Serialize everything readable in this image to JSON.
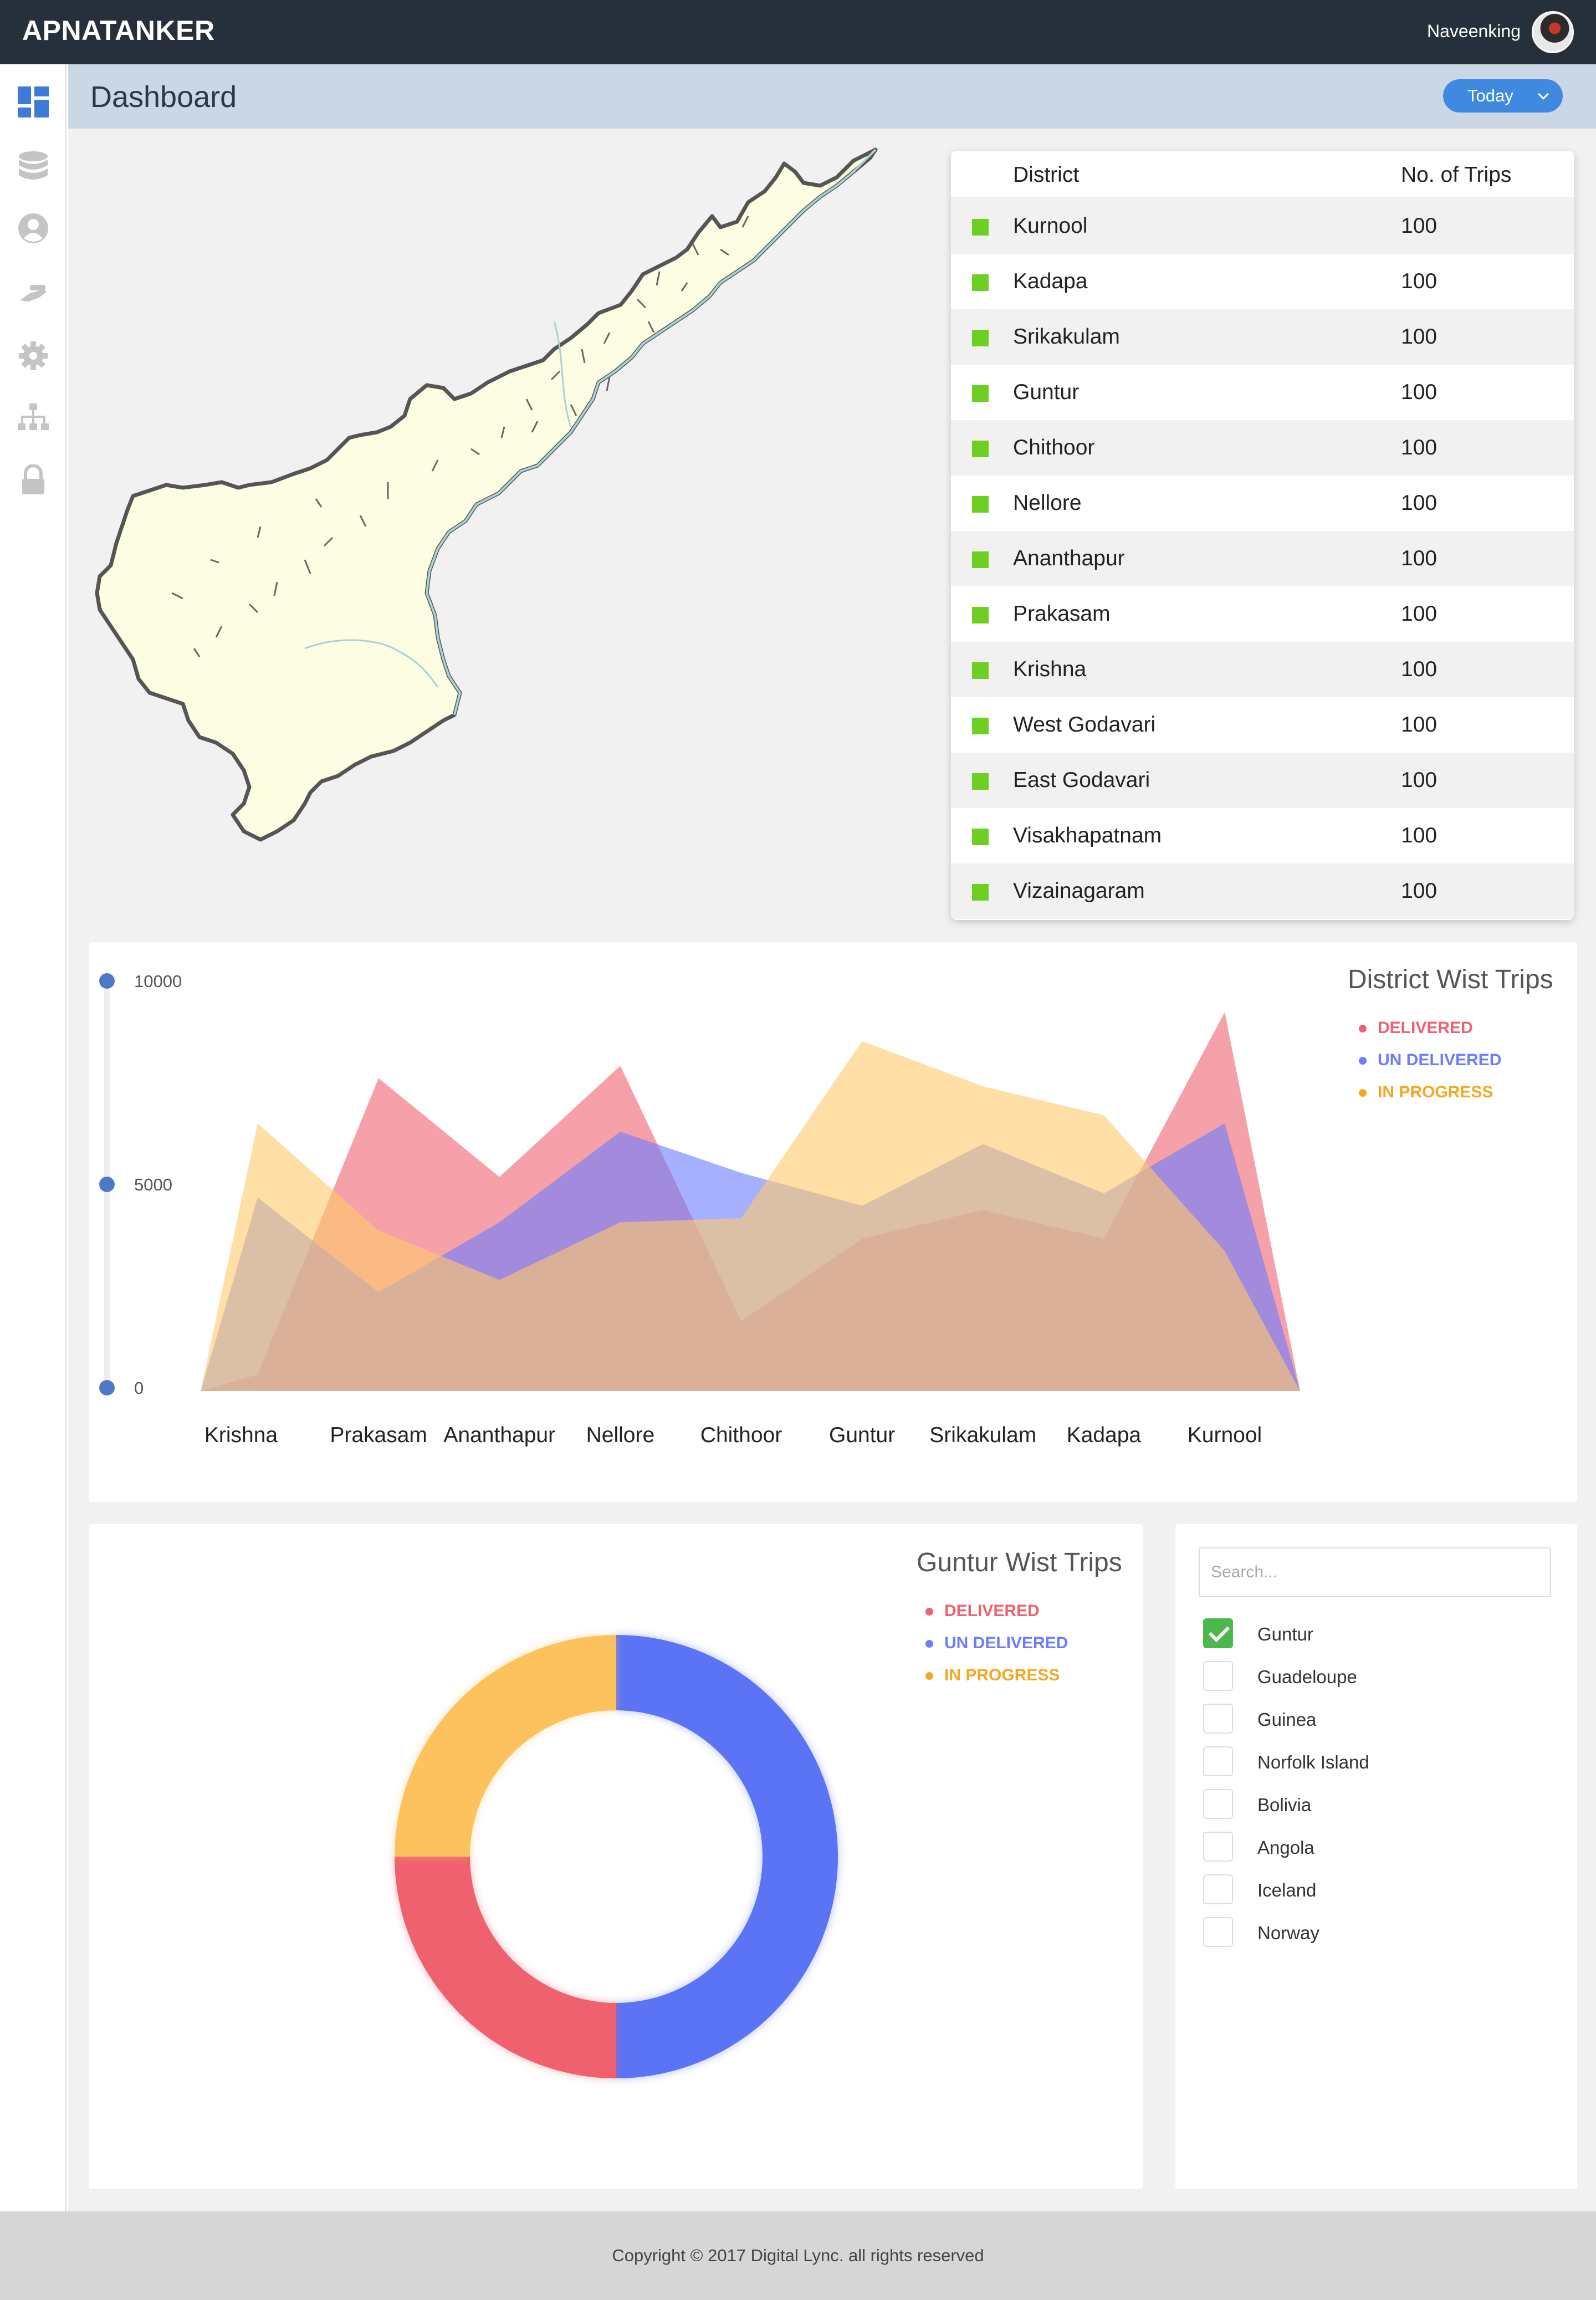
{
  "app": {
    "brand": "APNATANKER",
    "user_name": "Naveenking"
  },
  "header": {
    "title": "Dashboard",
    "period_label": "Today"
  },
  "sidebar": {
    "items": [
      {
        "icon": "dashboard-icon",
        "active": true
      },
      {
        "icon": "database-icon",
        "active": false
      },
      {
        "icon": "user-icon",
        "active": false
      },
      {
        "icon": "tanker-icon",
        "active": false
      },
      {
        "icon": "gear-icon",
        "active": false
      },
      {
        "icon": "hierarchy-icon",
        "active": false
      },
      {
        "icon": "lock-icon",
        "active": false
      }
    ]
  },
  "district_table": {
    "col_district": "District",
    "col_trips": "No. of Trips",
    "rows": [
      {
        "name": "Kurnool",
        "trips": "100"
      },
      {
        "name": "Kadapa",
        "trips": "100"
      },
      {
        "name": "Srikakulam",
        "trips": "100"
      },
      {
        "name": "Guntur",
        "trips": "100"
      },
      {
        "name": "Chithoor",
        "trips": "100"
      },
      {
        "name": "Nellore",
        "trips": "100"
      },
      {
        "name": "Ananthapur",
        "trips": "100"
      },
      {
        "name": "Prakasam",
        "trips": "100"
      },
      {
        "name": "Krishna",
        "trips": "100"
      },
      {
        "name": "West Godavari",
        "trips": "100"
      },
      {
        "name": "East Godavari",
        "trips": "100"
      },
      {
        "name": "Visakhapatnam",
        "trips": "100"
      },
      {
        "name": "Vizainagaram",
        "trips": "100"
      }
    ],
    "marker_color": "#6ecf22"
  },
  "chart_data": [
    {
      "type": "area",
      "title": "District Wist Trips",
      "categories": [
        "Krishna",
        "Prakasam",
        "Ananthapur",
        "Nellore",
        "Chithoor",
        "Guntur",
        "Srikakulam",
        "Kadapa",
        "Kurnool"
      ],
      "y_ticks": [
        "10000",
        "5000",
        "0"
      ],
      "ylim": [
        0,
        10000
      ],
      "series": [
        {
          "name": "DELIVERED",
          "color": "#f0616f",
          "values": [
            400,
            7600,
            5200,
            7900,
            1700,
            3700,
            4400,
            3700,
            9200
          ]
        },
        {
          "name": "UN DELIVERED",
          "color": "#6b7cff",
          "values": [
            4700,
            2400,
            4100,
            6300,
            5300,
            4500,
            6000,
            4800,
            6500
          ]
        },
        {
          "name": "IN PROGRESS",
          "color": "#ffc96b",
          "values": [
            6500,
            3900,
            2700,
            4100,
            4200,
            8500,
            7400,
            6700,
            3400
          ]
        }
      ],
      "legend_position": "top-right"
    },
    {
      "type": "pie",
      "title": "Guntur Wist Trips",
      "series": [
        {
          "name": "DELIVERED",
          "color": "#f0616f",
          "value": 25
        },
        {
          "name": "UN DELIVERED",
          "color": "#5b73f5",
          "value": 50
        },
        {
          "name": "IN PROGRESS",
          "color": "#fdc25e",
          "value": 25
        }
      ],
      "legend_position": "top-right"
    }
  ],
  "legend": {
    "delivered": "DELIVERED",
    "undelivered": "UN DELIVERED",
    "in_progress": "IN PROGRESS",
    "delivered_color": "#f0616f",
    "undelivered_color": "#6b7cff",
    "in_progress_color": "#f5a623"
  },
  "filter": {
    "search_placeholder": "Search...",
    "options": [
      {
        "label": "Guntur",
        "checked": true
      },
      {
        "label": "Guadeloupe",
        "checked": false
      },
      {
        "label": "Guinea",
        "checked": false
      },
      {
        "label": "Norfolk Island",
        "checked": false
      },
      {
        "label": "Bolivia",
        "checked": false
      },
      {
        "label": "Angola",
        "checked": false
      },
      {
        "label": "Iceland",
        "checked": false
      },
      {
        "label": "Norway",
        "checked": false
      }
    ]
  },
  "footer": {
    "copyright": "Copyright © 2017 Digital Lync. all rights reserved"
  }
}
